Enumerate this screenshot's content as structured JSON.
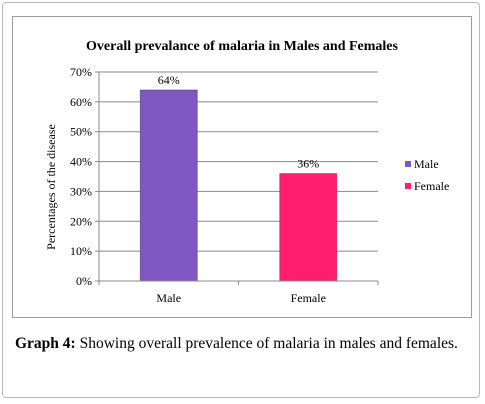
{
  "caption": {
    "label": "Graph 4:",
    "text": "Showing overall prevalence of malaria in males and females."
  },
  "chart_data": {
    "type": "bar",
    "title": "Overall prevalance of malaria in  Males and Females",
    "xlabel": "",
    "ylabel": "Percentages of the disease",
    "categories": [
      "Male",
      "Female"
    ],
    "values": [
      64,
      36
    ],
    "data_labels": [
      "64%",
      "36%"
    ],
    "colors": [
      "#7E57C2",
      "#FF1F6D"
    ],
    "ylim": [
      0,
      70
    ],
    "yticks": [
      "0%",
      "10%",
      "20%",
      "30%",
      "40%",
      "50%",
      "60%",
      "70%"
    ],
    "grid": true,
    "legend": {
      "placement": "right",
      "entries": [
        "Male",
        "Female"
      ]
    }
  }
}
